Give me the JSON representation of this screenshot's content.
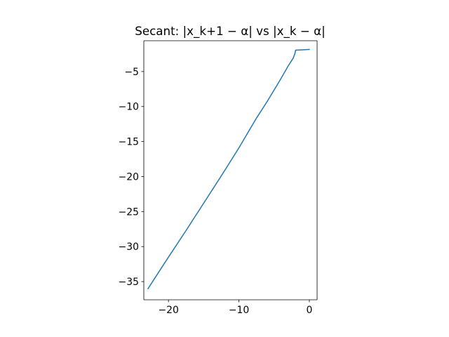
{
  "chart_data": {
    "type": "line",
    "title": "Secant: |x_k+1 − α| vs |x_k − α|",
    "xlabel": "",
    "ylabel": "",
    "xlim": [
      -23.5,
      1.1
    ],
    "ylim": [
      -37.6,
      -0.6
    ],
    "x_ticks": [
      -20,
      -10,
      0
    ],
    "x_tick_labels": [
      "−20",
      "−10",
      "0"
    ],
    "y_ticks": [
      -5,
      -10,
      -15,
      -20,
      -25,
      -30,
      -35
    ],
    "y_tick_labels": [
      "−5",
      "−10",
      "−15",
      "−20",
      "−25",
      "−30",
      "−35"
    ],
    "grid": false,
    "legend": "none",
    "series": [
      {
        "color": "#1f77b4",
        "x": [
          -22.9,
          -20.0,
          -17.5,
          -15.0,
          -12.5,
          -10.0,
          -7.6,
          -6.0,
          -4.2,
          -3.0,
          -2.3,
          -2.05,
          -1.95,
          0.0
        ],
        "y": [
          -36.0,
          -31.5,
          -27.7,
          -23.8,
          -19.9,
          -15.9,
          -11.8,
          -9.3,
          -6.3,
          -4.2,
          -3.1,
          -2.45,
          -1.95,
          -1.85
        ]
      }
    ]
  }
}
